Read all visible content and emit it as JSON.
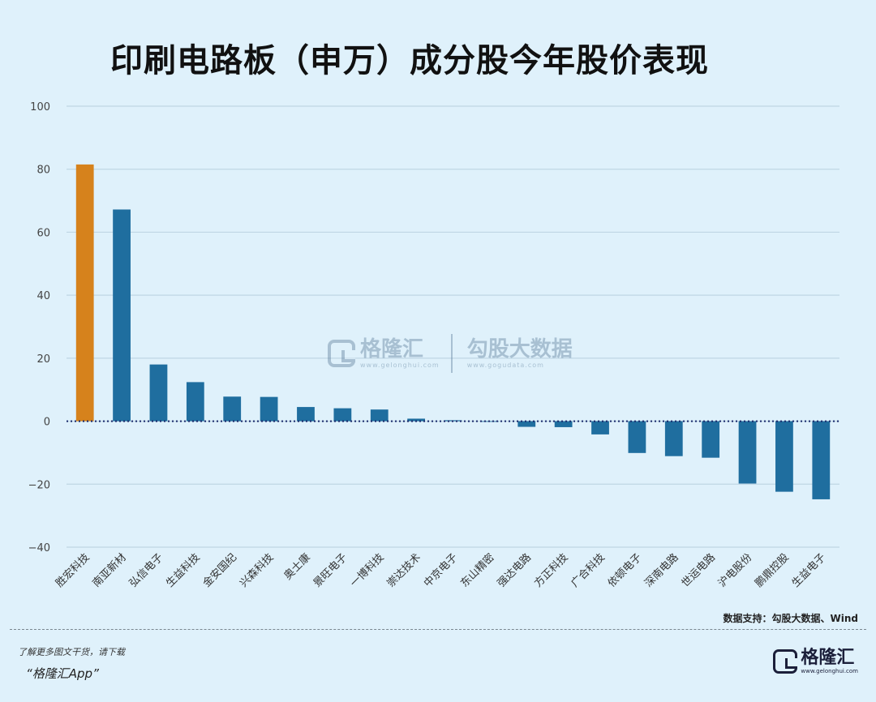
{
  "title": "印刷电路板（申万）成分股今年股价表现",
  "source": "数据支持：勾股大数据、Wind",
  "watermark": {
    "brand1": "格隆汇",
    "url1": "www.gelonghui.com",
    "brand2": "勾股大数据",
    "url2": "www.gogudata.com"
  },
  "footer": {
    "promo_line1": "了解更多图文干货，请下载",
    "promo_line2": "“格隆汇App”",
    "logo_text": "格隆汇",
    "logo_url": "www.gelonghui.com"
  },
  "colors": {
    "highlight": "#d6821c",
    "bar": "#1f6e9f",
    "grid": "#bfd6e4",
    "zero_line": "#1a2a6c"
  },
  "chart_data": {
    "type": "bar",
    "title": "印刷电路板（申万）成分股今年股价表现",
    "xlabel": "",
    "ylabel": "",
    "ylim": [
      -40,
      100
    ],
    "yticks": [
      100,
      80,
      60,
      40,
      20,
      0,
      -20,
      -40
    ],
    "grid": true,
    "categories": [
      "胜宏科技",
      "南亚新材",
      "弘信电子",
      "生益科技",
      "金安国纪",
      "兴森科技",
      "奥士康",
      "景旺电子",
      "一博科技",
      "崇达技术",
      "中京电子",
      "东山精密",
      "强达电路",
      "方正科技",
      "广合科技",
      "依顿电子",
      "深南电路",
      "世运电路",
      "沪电股份",
      "鹏鼎控股",
      "生益电子"
    ],
    "values": [
      81.5,
      67.2,
      18.0,
      12.4,
      7.8,
      7.7,
      4.5,
      4.1,
      3.7,
      0.8,
      0.3,
      0.0,
      -1.8,
      -1.9,
      -4.2,
      -10.1,
      -11.1,
      -11.6,
      -19.8,
      -22.4,
      -24.8
    ],
    "highlight_index": 0
  }
}
